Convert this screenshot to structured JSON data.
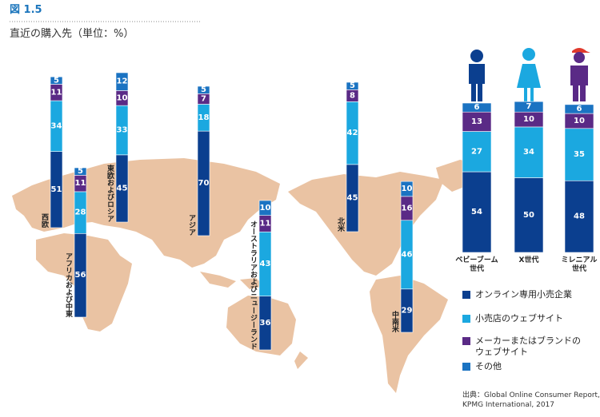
{
  "figure_label": "図 1.5",
  "title": "直近の購入先（単位：%）",
  "chart_data": {
    "type": "bar",
    "stacked": true,
    "categories": [
      "西欧",
      "アフリカおよび中東",
      "東欧およびロシア",
      "アジア",
      "オーストラリアおよびニュージーランド",
      "北米",
      "中南米",
      "ベビーブーム世代",
      "X世代",
      "ミレニアル世代"
    ],
    "series": [
      {
        "name": "オンライン専用小売企業",
        "color": "#0b3f8f",
        "values": [
          51,
          56,
          45,
          70,
          36,
          45,
          29,
          54,
          50,
          48
        ]
      },
      {
        "name": "小売店のウェブサイト",
        "color": "#1ba8e0",
        "values": [
          34,
          28,
          33,
          18,
          43,
          42,
          46,
          27,
          34,
          35
        ]
      },
      {
        "name": "メーカーまたはブランドのウェブサイト",
        "color": "#5a2a86",
        "values": [
          11,
          11,
          10,
          7,
          11,
          8,
          16,
          13,
          10,
          10
        ]
      },
      {
        "name": "その他",
        "color": "#1b73c2",
        "values": [
          5,
          5,
          12,
          5,
          10,
          5,
          10,
          6,
          7,
          6
        ]
      }
    ]
  },
  "source": [
    "出典：Global Online Consumer Report,",
    "KPMG International, 2017"
  ]
}
